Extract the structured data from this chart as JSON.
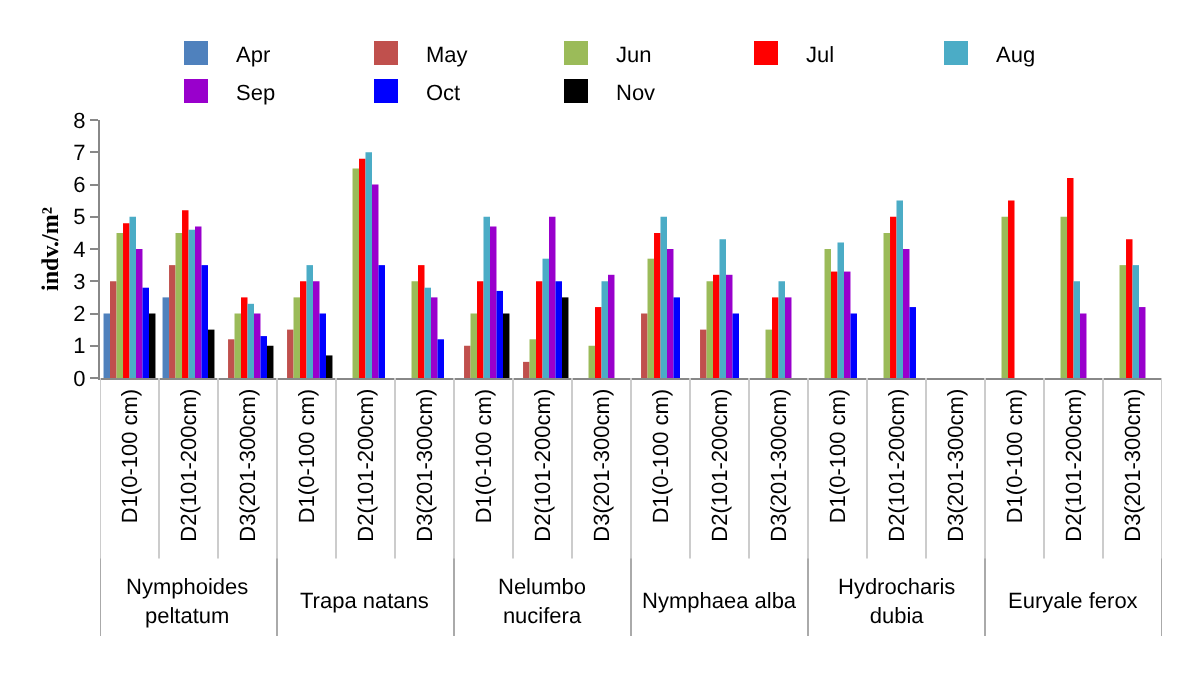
{
  "chart_data": {
    "type": "bar",
    "ylabel": "indv./m²",
    "categories": [
      "D1(0-100 cm)",
      "D2(101-200cm)",
      "D3(201-300cm)",
      "D1(0-100 cm)",
      "D2(101-200cm)",
      "D3(201-300cm)",
      "D1(0-100 cm)",
      "D2(101-200cm)",
      "D3(201-300cm)",
      "D1(0-100 cm)",
      "D2(101-200cm)",
      "D3(201-300cm)",
      "D1(0-100 cm)",
      "D2(101-200cm)",
      "D3(201-300cm)",
      "D1(0-100 cm)",
      "D2(101-200cm)",
      "D3(201-300cm)"
    ],
    "series": [
      {
        "name": "Apr",
        "color": "#4f81bd",
        "values": [
          2,
          2.5,
          null,
          null,
          null,
          null,
          null,
          null,
          null,
          null,
          null,
          null,
          null,
          null,
          null,
          null,
          null,
          null
        ]
      },
      {
        "name": "May",
        "color": "#c0504d",
        "values": [
          3,
          3.5,
          1.2,
          1.5,
          null,
          null,
          1,
          0.5,
          null,
          2,
          1.5,
          null,
          null,
          null,
          null,
          null,
          null,
          null
        ]
      },
      {
        "name": "Jun",
        "color": "#9bbb59",
        "values": [
          4.5,
          4.5,
          2,
          2.5,
          6.5,
          3,
          2,
          1.2,
          1,
          3.7,
          3,
          1.5,
          4,
          4.5,
          null,
          5,
          5,
          3.5
        ]
      },
      {
        "name": "Jul",
        "color": "#ff0000",
        "values": [
          4.8,
          5.2,
          2.5,
          3,
          6.8,
          3.5,
          3,
          3,
          2.2,
          4.5,
          3.2,
          2.5,
          3.3,
          5,
          null,
          5.5,
          6.2,
          4.3
        ]
      },
      {
        "name": "Aug",
        "color": "#4bacc6",
        "values": [
          5,
          4.6,
          2.3,
          3.5,
          7,
          2.8,
          5,
          3.7,
          3,
          5,
          4.3,
          3,
          4.2,
          5.5,
          null,
          null,
          3,
          3.5
        ]
      },
      {
        "name": "Sep",
        "color": "#9900cc",
        "values": [
          4,
          4.7,
          2,
          3,
          6,
          2.5,
          4.7,
          5,
          3.2,
          4,
          3.2,
          2.5,
          3.3,
          4,
          null,
          null,
          2,
          2.2
        ]
      },
      {
        "name": "Oct",
        "color": "#0000ff",
        "values": [
          2.8,
          3.5,
          1.3,
          2,
          3.5,
          1.2,
          2.7,
          3,
          null,
          2.5,
          2,
          null,
          2,
          2.2,
          null,
          null,
          null,
          null
        ]
      },
      {
        "name": "Nov",
        "color": "#000000",
        "values": [
          2,
          1.5,
          1,
          0.7,
          null,
          null,
          2,
          2.5,
          null,
          null,
          null,
          null,
          null,
          null,
          null,
          null,
          null,
          null
        ]
      }
    ],
    "ylim": [
      0,
      8
    ],
    "yticks": [
      0,
      1,
      2,
      3,
      4,
      5,
      6,
      7,
      8
    ],
    "legend": "top",
    "annotations": [
      "Nymphoides peltatum",
      "Trapa natans",
      "Nelumbo nucifera",
      "Nymphaea alba",
      "Hydrocharis dubia",
      "Euryale ferox"
    ]
  }
}
